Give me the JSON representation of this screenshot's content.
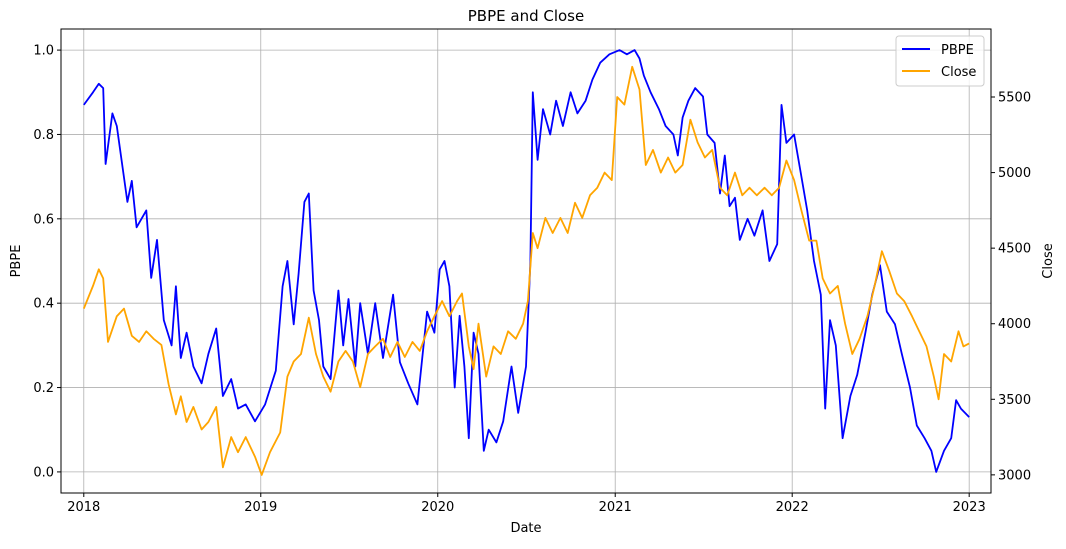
{
  "chart_data": {
    "type": "line",
    "title": "PBPE and Close",
    "xlabel": "Date",
    "ylabel": "PBPE",
    "y2label": "Close",
    "xlim": [
      "2017-11-15",
      "2023-02-15"
    ],
    "ylim": [
      -0.05,
      1.05
    ],
    "y2lim": [
      2880,
      5950
    ],
    "x_ticks": [
      "2018-01-01",
      "2019-01-01",
      "2020-01-01",
      "2021-01-01",
      "2022-01-01",
      "2023-01-01"
    ],
    "x_tick_labels": [
      "2018",
      "2019",
      "2020",
      "2021",
      "2022",
      "2023"
    ],
    "y_ticks": [
      0.0,
      0.2,
      0.4,
      0.6,
      0.8,
      1.0
    ],
    "y_tick_labels": [
      "0.0",
      "0.2",
      "0.4",
      "0.6",
      "0.8",
      "1.0"
    ],
    "y2_ticks": [
      3000,
      3500,
      4000,
      4500,
      5000,
      5500
    ],
    "y2_tick_labels": [
      "3000",
      "3500",
      "4000",
      "4500",
      "5000",
      "5500"
    ],
    "grid": true,
    "legend_position": "top-right",
    "series": [
      {
        "name": "PBPE",
        "axis": "left",
        "color": "#0000ff",
        "points": [
          [
            "2018-01-01",
            0.87
          ],
          [
            "2018-01-20",
            0.9
          ],
          [
            "2018-02-01",
            0.92
          ],
          [
            "2018-02-10",
            0.91
          ],
          [
            "2018-02-15",
            0.73
          ],
          [
            "2018-03-01",
            0.85
          ],
          [
            "2018-03-10",
            0.82
          ],
          [
            "2018-04-01",
            0.64
          ],
          [
            "2018-04-10",
            0.69
          ],
          [
            "2018-04-20",
            0.58
          ],
          [
            "2018-05-10",
            0.62
          ],
          [
            "2018-05-20",
            0.46
          ],
          [
            "2018-06-01",
            0.55
          ],
          [
            "2018-06-15",
            0.36
          ],
          [
            "2018-07-01",
            0.3
          ],
          [
            "2018-07-10",
            0.44
          ],
          [
            "2018-07-20",
            0.27
          ],
          [
            "2018-08-01",
            0.33
          ],
          [
            "2018-08-15",
            0.25
          ],
          [
            "2018-09-01",
            0.21
          ],
          [
            "2018-09-15",
            0.28
          ],
          [
            "2018-10-01",
            0.34
          ],
          [
            "2018-10-15",
            0.18
          ],
          [
            "2018-11-01",
            0.22
          ],
          [
            "2018-11-15",
            0.15
          ],
          [
            "2018-12-01",
            0.16
          ],
          [
            "2018-12-20",
            0.12
          ],
          [
            "2019-01-10",
            0.16
          ],
          [
            "2019-02-01",
            0.24
          ],
          [
            "2019-02-15",
            0.44
          ],
          [
            "2019-02-25",
            0.5
          ],
          [
            "2019-03-10",
            0.35
          ],
          [
            "2019-03-20",
            0.47
          ],
          [
            "2019-04-01",
            0.64
          ],
          [
            "2019-04-10",
            0.66
          ],
          [
            "2019-04-20",
            0.43
          ],
          [
            "2019-05-01",
            0.36
          ],
          [
            "2019-05-10",
            0.25
          ],
          [
            "2019-05-25",
            0.22
          ],
          [
            "2019-06-10",
            0.43
          ],
          [
            "2019-06-20",
            0.3
          ],
          [
            "2019-07-01",
            0.41
          ],
          [
            "2019-07-15",
            0.25
          ],
          [
            "2019-07-25",
            0.4
          ],
          [
            "2019-08-10",
            0.28
          ],
          [
            "2019-08-25",
            0.4
          ],
          [
            "2019-09-10",
            0.27
          ],
          [
            "2019-10-01",
            0.42
          ],
          [
            "2019-10-15",
            0.26
          ],
          [
            "2019-11-01",
            0.21
          ],
          [
            "2019-11-20",
            0.16
          ],
          [
            "2019-12-10",
            0.38
          ],
          [
            "2019-12-25",
            0.33
          ],
          [
            "2020-01-05",
            0.48
          ],
          [
            "2020-01-15",
            0.5
          ],
          [
            "2020-01-25",
            0.44
          ],
          [
            "2020-02-05",
            0.2
          ],
          [
            "2020-02-15",
            0.37
          ],
          [
            "2020-02-25",
            0.25
          ],
          [
            "2020-03-05",
            0.08
          ],
          [
            "2020-03-15",
            0.33
          ],
          [
            "2020-03-25",
            0.28
          ],
          [
            "2020-04-05",
            0.05
          ],
          [
            "2020-04-15",
            0.1
          ],
          [
            "2020-05-01",
            0.07
          ],
          [
            "2020-05-15",
            0.12
          ],
          [
            "2020-06-01",
            0.25
          ],
          [
            "2020-06-15",
            0.14
          ],
          [
            "2020-07-01",
            0.25
          ],
          [
            "2020-07-10",
            0.5
          ],
          [
            "2020-07-15",
            0.9
          ],
          [
            "2020-07-25",
            0.74
          ],
          [
            "2020-08-05",
            0.86
          ],
          [
            "2020-08-20",
            0.8
          ],
          [
            "2020-09-01",
            0.88
          ],
          [
            "2020-09-15",
            0.82
          ],
          [
            "2020-10-01",
            0.9
          ],
          [
            "2020-10-15",
            0.85
          ],
          [
            "2020-11-01",
            0.88
          ],
          [
            "2020-11-15",
            0.93
          ],
          [
            "2020-12-01",
            0.97
          ],
          [
            "2020-12-20",
            0.99
          ],
          [
            "2021-01-10",
            1.0
          ],
          [
            "2021-01-25",
            0.99
          ],
          [
            "2021-02-10",
            1.0
          ],
          [
            "2021-02-20",
            0.98
          ],
          [
            "2021-03-01",
            0.94
          ],
          [
            "2021-03-15",
            0.9
          ],
          [
            "2021-04-01",
            0.86
          ],
          [
            "2021-04-15",
            0.82
          ],
          [
            "2021-05-01",
            0.8
          ],
          [
            "2021-05-10",
            0.75
          ],
          [
            "2021-05-20",
            0.84
          ],
          [
            "2021-06-01",
            0.88
          ],
          [
            "2021-06-15",
            0.91
          ],
          [
            "2021-07-01",
            0.89
          ],
          [
            "2021-07-10",
            0.8
          ],
          [
            "2021-07-25",
            0.78
          ],
          [
            "2021-08-05",
            0.66
          ],
          [
            "2021-08-15",
            0.75
          ],
          [
            "2021-08-25",
            0.63
          ],
          [
            "2021-09-05",
            0.65
          ],
          [
            "2021-09-15",
            0.55
          ],
          [
            "2021-10-01",
            0.6
          ],
          [
            "2021-10-15",
            0.56
          ],
          [
            "2021-11-01",
            0.62
          ],
          [
            "2021-11-15",
            0.5
          ],
          [
            "2021-12-01",
            0.54
          ],
          [
            "2021-12-10",
            0.87
          ],
          [
            "2021-12-20",
            0.78
          ],
          [
            "2022-01-05",
            0.8
          ],
          [
            "2022-01-20",
            0.7
          ],
          [
            "2022-02-01",
            0.62
          ],
          [
            "2022-02-15",
            0.5
          ],
          [
            "2022-03-01",
            0.42
          ],
          [
            "2022-03-10",
            0.15
          ],
          [
            "2022-03-20",
            0.36
          ],
          [
            "2022-04-01",
            0.3
          ],
          [
            "2022-04-15",
            0.08
          ],
          [
            "2022-05-01",
            0.18
          ],
          [
            "2022-05-15",
            0.23
          ],
          [
            "2022-06-01",
            0.33
          ],
          [
            "2022-06-15",
            0.42
          ],
          [
            "2022-07-01",
            0.49
          ],
          [
            "2022-07-15",
            0.38
          ],
          [
            "2022-08-01",
            0.35
          ],
          [
            "2022-08-15",
            0.28
          ],
          [
            "2022-09-01",
            0.2
          ],
          [
            "2022-09-15",
            0.11
          ],
          [
            "2022-10-01",
            0.08
          ],
          [
            "2022-10-15",
            0.05
          ],
          [
            "2022-10-25",
            0.0
          ],
          [
            "2022-11-10",
            0.05
          ],
          [
            "2022-11-25",
            0.08
          ],
          [
            "2022-12-05",
            0.17
          ],
          [
            "2022-12-15",
            0.15
          ],
          [
            "2023-01-01",
            0.13
          ]
        ]
      },
      {
        "name": "Close",
        "axis": "right",
        "color": "#ffa500",
        "points": [
          [
            "2018-01-01",
            4100
          ],
          [
            "2018-01-20",
            4250
          ],
          [
            "2018-02-01",
            4360
          ],
          [
            "2018-02-10",
            4300
          ],
          [
            "2018-02-20",
            3880
          ],
          [
            "2018-03-10",
            4050
          ],
          [
            "2018-03-25",
            4100
          ],
          [
            "2018-04-10",
            3920
          ],
          [
            "2018-04-25",
            3880
          ],
          [
            "2018-05-10",
            3950
          ],
          [
            "2018-05-25",
            3900
          ],
          [
            "2018-06-10",
            3860
          ],
          [
            "2018-06-25",
            3600
          ],
          [
            "2018-07-10",
            3400
          ],
          [
            "2018-07-20",
            3520
          ],
          [
            "2018-08-01",
            3350
          ],
          [
            "2018-08-15",
            3450
          ],
          [
            "2018-09-01",
            3300
          ],
          [
            "2018-09-15",
            3350
          ],
          [
            "2018-10-01",
            3450
          ],
          [
            "2018-10-15",
            3050
          ],
          [
            "2018-11-01",
            3250
          ],
          [
            "2018-11-15",
            3150
          ],
          [
            "2018-12-01",
            3250
          ],
          [
            "2018-12-20",
            3120
          ],
          [
            "2019-01-03",
            3000
          ],
          [
            "2019-01-20",
            3150
          ],
          [
            "2019-02-10",
            3280
          ],
          [
            "2019-02-25",
            3650
          ],
          [
            "2019-03-10",
            3750
          ],
          [
            "2019-03-25",
            3800
          ],
          [
            "2019-04-10",
            4040
          ],
          [
            "2019-04-25",
            3800
          ],
          [
            "2019-05-10",
            3650
          ],
          [
            "2019-05-25",
            3550
          ],
          [
            "2019-06-10",
            3750
          ],
          [
            "2019-06-25",
            3820
          ],
          [
            "2019-07-10",
            3750
          ],
          [
            "2019-07-25",
            3580
          ],
          [
            "2019-08-10",
            3800
          ],
          [
            "2019-08-25",
            3850
          ],
          [
            "2019-09-10",
            3900
          ],
          [
            "2019-09-25",
            3780
          ],
          [
            "2019-10-10",
            3880
          ],
          [
            "2019-10-25",
            3780
          ],
          [
            "2019-11-10",
            3880
          ],
          [
            "2019-11-25",
            3820
          ],
          [
            "2019-12-10",
            3950
          ],
          [
            "2019-12-25",
            4050
          ],
          [
            "2020-01-10",
            4150
          ],
          [
            "2020-01-25",
            4050
          ],
          [
            "2020-02-10",
            4150
          ],
          [
            "2020-02-20",
            4200
          ],
          [
            "2020-03-05",
            3850
          ],
          [
            "2020-03-15",
            3700
          ],
          [
            "2020-03-25",
            4000
          ],
          [
            "2020-04-10",
            3650
          ],
          [
            "2020-04-25",
            3850
          ],
          [
            "2020-05-10",
            3800
          ],
          [
            "2020-05-25",
            3950
          ],
          [
            "2020-06-10",
            3900
          ],
          [
            "2020-06-25",
            4000
          ],
          [
            "2020-07-05",
            4150
          ],
          [
            "2020-07-15",
            4600
          ],
          [
            "2020-07-25",
            4500
          ],
          [
            "2020-08-10",
            4700
          ],
          [
            "2020-08-25",
            4600
          ],
          [
            "2020-09-10",
            4700
          ],
          [
            "2020-09-25",
            4600
          ],
          [
            "2020-10-10",
            4800
          ],
          [
            "2020-10-25",
            4700
          ],
          [
            "2020-11-10",
            4850
          ],
          [
            "2020-11-25",
            4900
          ],
          [
            "2020-12-10",
            5000
          ],
          [
            "2020-12-25",
            4950
          ],
          [
            "2021-01-05",
            5500
          ],
          [
            "2021-01-20",
            5450
          ],
          [
            "2021-02-05",
            5700
          ],
          [
            "2021-02-20",
            5550
          ],
          [
            "2021-03-05",
            5050
          ],
          [
            "2021-03-20",
            5150
          ],
          [
            "2021-04-05",
            5000
          ],
          [
            "2021-04-20",
            5100
          ],
          [
            "2021-05-05",
            5000
          ],
          [
            "2021-05-20",
            5050
          ],
          [
            "2021-06-05",
            5350
          ],
          [
            "2021-06-20",
            5200
          ],
          [
            "2021-07-05",
            5100
          ],
          [
            "2021-07-20",
            5150
          ],
          [
            "2021-08-05",
            4900
          ],
          [
            "2021-08-20",
            4850
          ],
          [
            "2021-09-05",
            5000
          ],
          [
            "2021-09-20",
            4850
          ],
          [
            "2021-10-05",
            4900
          ],
          [
            "2021-10-20",
            4850
          ],
          [
            "2021-11-05",
            4900
          ],
          [
            "2021-11-20",
            4850
          ],
          [
            "2021-12-05",
            4900
          ],
          [
            "2021-12-20",
            5080
          ],
          [
            "2022-01-05",
            4950
          ],
          [
            "2022-01-20",
            4750
          ],
          [
            "2022-02-05",
            4550
          ],
          [
            "2022-02-20",
            4550
          ],
          [
            "2022-03-05",
            4300
          ],
          [
            "2022-03-20",
            4200
          ],
          [
            "2022-04-05",
            4250
          ],
          [
            "2022-04-20",
            4000
          ],
          [
            "2022-05-05",
            3800
          ],
          [
            "2022-05-20",
            3900
          ],
          [
            "2022-06-05",
            4050
          ],
          [
            "2022-06-20",
            4250
          ],
          [
            "2022-07-05",
            4480
          ],
          [
            "2022-07-20",
            4350
          ],
          [
            "2022-08-05",
            4200
          ],
          [
            "2022-08-20",
            4150
          ],
          [
            "2022-09-05",
            4050
          ],
          [
            "2022-09-20",
            3950
          ],
          [
            "2022-10-05",
            3850
          ],
          [
            "2022-10-20",
            3650
          ],
          [
            "2022-10-30",
            3500
          ],
          [
            "2022-11-10",
            3800
          ],
          [
            "2022-11-25",
            3750
          ],
          [
            "2022-12-10",
            3950
          ],
          [
            "2022-12-20",
            3850
          ],
          [
            "2023-01-01",
            3870
          ]
        ]
      }
    ]
  }
}
